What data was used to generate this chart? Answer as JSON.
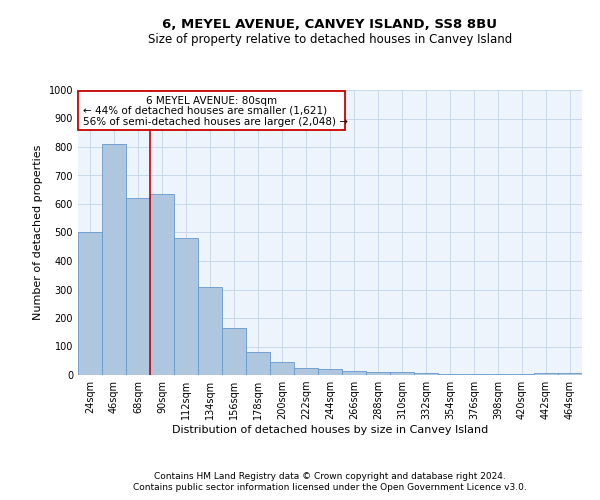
{
  "title": "6, MEYEL AVENUE, CANVEY ISLAND, SS8 8BU",
  "subtitle": "Size of property relative to detached houses in Canvey Island",
  "xlabel": "Distribution of detached houses by size in Canvey Island",
  "ylabel": "Number of detached properties",
  "footer_line1": "Contains HM Land Registry data © Crown copyright and database right 2024.",
  "footer_line2": "Contains public sector information licensed under the Open Government Licence v3.0.",
  "categories": [
    "24sqm",
    "46sqm",
    "68sqm",
    "90sqm",
    "112sqm",
    "134sqm",
    "156sqm",
    "178sqm",
    "200sqm",
    "222sqm",
    "244sqm",
    "266sqm",
    "288sqm",
    "310sqm",
    "332sqm",
    "354sqm",
    "376sqm",
    "398sqm",
    "420sqm",
    "442sqm",
    "464sqm"
  ],
  "values": [
    500,
    810,
    620,
    635,
    480,
    310,
    165,
    82,
    45,
    25,
    20,
    13,
    12,
    10,
    7,
    5,
    5,
    3,
    5,
    8,
    8
  ],
  "bar_color": "#aec6de",
  "bar_edge_color": "#6699cc",
  "grid_color": "#c8d8ea",
  "background_color": "#eef4fb",
  "annotation_box_color": "#cc0000",
  "vline_color": "#cc0000",
  "vline_position": 2.5,
  "annotation_text_line1": "6 MEYEL AVENUE: 80sqm",
  "annotation_text_line2": "← 44% of detached houses are smaller (1,621)",
  "annotation_text_line3": "56% of semi-detached houses are larger (2,048) →",
  "ylim": [
    0,
    1000
  ],
  "yticks": [
    0,
    100,
    200,
    300,
    400,
    500,
    600,
    700,
    800,
    900,
    1000
  ],
  "title_fontsize": 9.5,
  "subtitle_fontsize": 8.5,
  "axis_label_fontsize": 8,
  "tick_fontsize": 7,
  "annotation_fontsize": 7.5,
  "footer_fontsize": 6.5
}
